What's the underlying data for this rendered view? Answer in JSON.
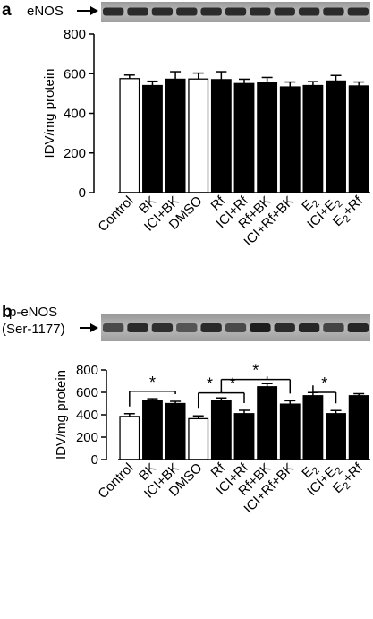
{
  "chart_data": [
    {
      "panel": "a",
      "type": "bar",
      "blot_label": "eNOS",
      "ylabel": "IDV/mg protein",
      "ylim": [
        0,
        800
      ],
      "yticks": [
        0,
        200,
        400,
        600,
        800
      ],
      "categories": [
        "Control",
        "BK",
        "ICI+BK",
        "DMSO",
        "Rf",
        "ICI+Rf",
        "Rf+BK",
        "ICI+Rf+BK",
        "E2",
        "ICI+E2",
        "E2+Rf"
      ],
      "values": [
        575,
        540,
        572,
        573,
        570,
        550,
        553,
        533,
        540,
        563,
        538
      ],
      "errors": [
        18,
        22,
        38,
        30,
        40,
        22,
        28,
        25,
        20,
        28,
        20
      ],
      "bar_colors": [
        "white",
        "black",
        "black",
        "white",
        "black",
        "black",
        "black",
        "black",
        "black",
        "black",
        "black"
      ],
      "brackets": []
    },
    {
      "panel": "b",
      "type": "bar",
      "blot_label_lines": [
        "p-eNOS",
        "(Ser-1177)"
      ],
      "ylabel": "IDV/mg protein",
      "ylim": [
        0,
        800
      ],
      "yticks": [
        0,
        200,
        400,
        600,
        800
      ],
      "categories": [
        "Control",
        "BK",
        "ICI+BK",
        "DMSO",
        "Rf",
        "ICI+Rf",
        "Rf+BK",
        "ICI+Rf+BK",
        "E2",
        "ICI+E2",
        "E2+Rf"
      ],
      "values": [
        385,
        525,
        500,
        365,
        530,
        410,
        650,
        495,
        570,
        410,
        570
      ],
      "errors": [
        25,
        18,
        20,
        25,
        20,
        30,
        28,
        30,
        28,
        28,
        18
      ],
      "bar_colors": [
        "white",
        "black",
        "black",
        "white",
        "black",
        "black",
        "black",
        "black",
        "black",
        "black",
        "black"
      ],
      "brackets": [
        {
          "from": 0,
          "to": [
            1,
            2
          ],
          "y": 610,
          "label": "*"
        },
        {
          "from": 3,
          "to": [
            4
          ],
          "y": 595,
          "label": "*"
        },
        {
          "from": 4,
          "to": [
            5
          ],
          "y": 595,
          "label": "*"
        },
        {
          "from": 4,
          "to": [
            6,
            7
          ],
          "y": 715,
          "label": "*"
        },
        {
          "from": 8,
          "to": [
            9
          ],
          "y": 600,
          "label": "*"
        }
      ]
    }
  ]
}
